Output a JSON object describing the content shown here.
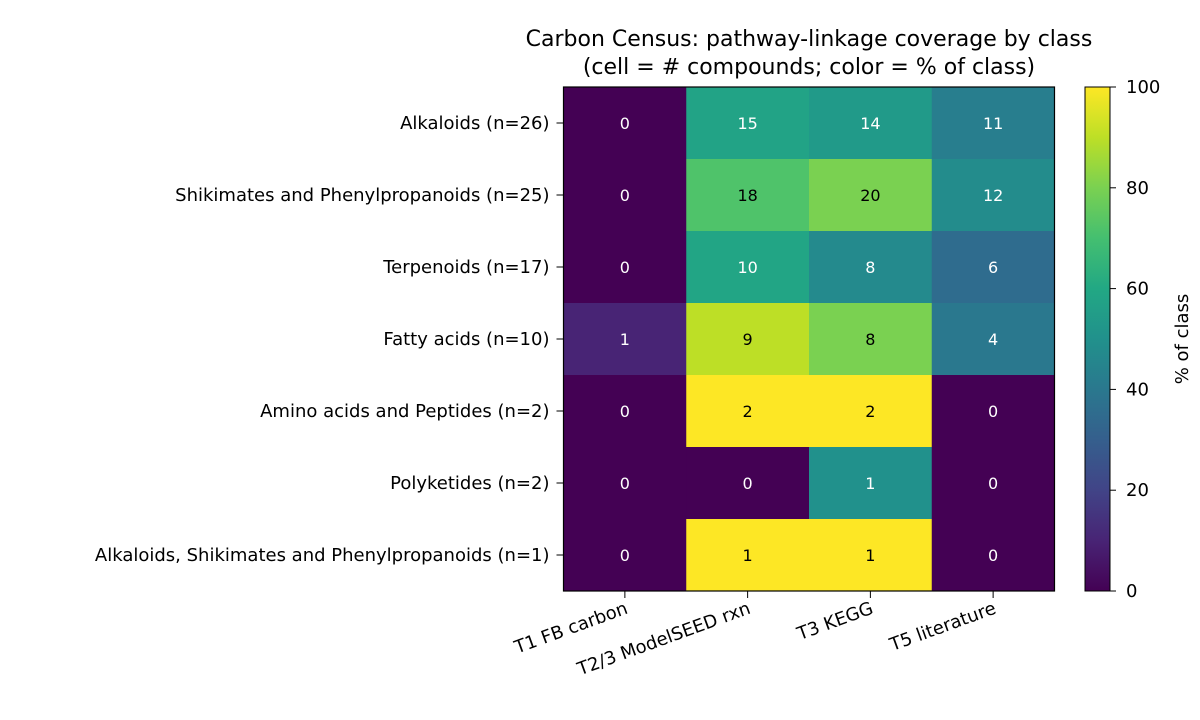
{
  "chart_data": {
    "type": "heatmap",
    "title": "Carbon Census: pathway-linkage coverage by class",
    "subtitle": "(cell = # compounds; color = % of class)",
    "rows": [
      "Alkaloids (n=26)",
      "Shikimates and Phenylpropanoids (n=25)",
      "Terpenoids (n=17)",
      "Fatty acids (n=10)",
      "Amino acids and Peptides (n=2)",
      "Polyketides (n=2)",
      "Alkaloids, Shikimates and Phenylpropanoids (n=1)"
    ],
    "columns": [
      "T1 FB carbon",
      "T2/3 ModelSEED rxn",
      "T3 KEGG",
      "T5 literature"
    ],
    "class_sizes": [
      26,
      25,
      17,
      10,
      2,
      2,
      1
    ],
    "counts": [
      [
        0,
        15,
        14,
        11
      ],
      [
        0,
        18,
        20,
        12
      ],
      [
        0,
        10,
        8,
        6
      ],
      [
        1,
        9,
        8,
        4
      ],
      [
        0,
        2,
        2,
        0
      ],
      [
        0,
        0,
        1,
        0
      ],
      [
        0,
        1,
        1,
        0
      ]
    ],
    "color_scale": {
      "name": "viridis",
      "label": "% of class",
      "range": [
        0,
        100
      ],
      "ticks": [
        "0",
        "20",
        "40",
        "60",
        "80",
        "100"
      ]
    },
    "text_colors": {
      "light": "#ffffff",
      "dark": "#000000"
    }
  }
}
